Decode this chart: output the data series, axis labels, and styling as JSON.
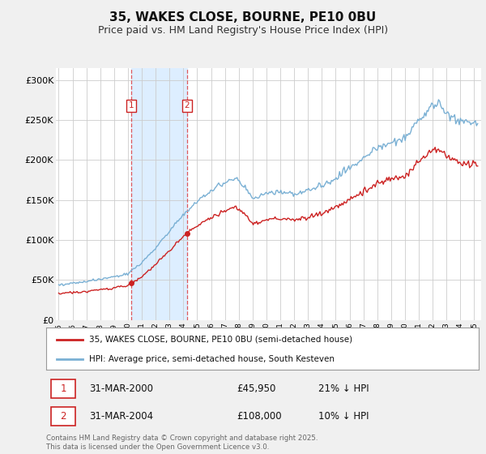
{
  "title": "35, WAKES CLOSE, BOURNE, PE10 0BU",
  "subtitle": "Price paid vs. HM Land Registry's House Price Index (HPI)",
  "ylabel_ticks": [
    "£0",
    "£50K",
    "£100K",
    "£150K",
    "£200K",
    "£250K",
    "£300K"
  ],
  "ytick_values": [
    0,
    50000,
    100000,
    150000,
    200000,
    250000,
    300000
  ],
  "ylim": [
    0,
    315000
  ],
  "xlim_start": 1994.8,
  "xlim_end": 2025.5,
  "legend_line1": "35, WAKES CLOSE, BOURNE, PE10 0BU (semi-detached house)",
  "legend_line2": "HPI: Average price, semi-detached house, South Kesteven",
  "sale1_date": "31-MAR-2000",
  "sale1_price": "£45,950",
  "sale1_hpi": "21% ↓ HPI",
  "sale2_date": "31-MAR-2004",
  "sale2_price": "£108,000",
  "sale2_hpi": "10% ↓ HPI",
  "footnote": "Contains HM Land Registry data © Crown copyright and database right 2025.\nThis data is licensed under the Open Government Licence v3.0.",
  "sale1_x": 2000.25,
  "sale1_y": 45950,
  "sale2_x": 2004.25,
  "sale2_y": 108000,
  "shade_x1": 2000.25,
  "shade_x2": 2004.25,
  "line_color_red": "#cc2222",
  "line_color_blue": "#7ab0d4",
  "shade_color": "#ddeeff",
  "background_color": "#f0f0f0",
  "plot_bg_color": "#ffffff",
  "grid_color": "#cccccc",
  "title_fontsize": 11,
  "subtitle_fontsize": 9
}
